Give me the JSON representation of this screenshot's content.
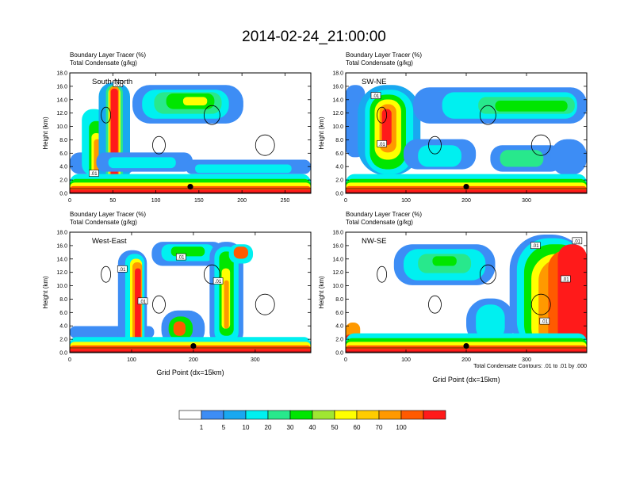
{
  "title": "2014-02-24_21:00:00",
  "colorbar": {
    "labels": [
      "1",
      "5",
      "10",
      "20",
      "30",
      "40",
      "50",
      "60",
      "70",
      "100"
    ],
    "colors": [
      "#ffffff",
      "#3d8df5",
      "#19a8f0",
      "#00f0f0",
      "#28e88c",
      "#00e600",
      "#a0e632",
      "#ffff00",
      "#ffcc00",
      "#ff9900",
      "#ff5a00",
      "#ff1a1a"
    ]
  },
  "footnote": "Total Condensate Contours: .01 to .01 by .000",
  "chart_data": [
    {
      "type": "heatmap",
      "name": "South-North",
      "label1": "Boundary Layer Tracer   (%)",
      "label2": "Total Condensate   (g/kg)",
      "ylabel": "Height (km)",
      "xlabel": "",
      "xlim": [
        0,
        280
      ],
      "ylim": [
        0,
        18
      ],
      "xticks": [
        "0",
        "50",
        "100",
        "150",
        "200",
        "250"
      ],
      "yticks": [
        "0.0",
        "2.0",
        "4.0",
        "6.0",
        "8.0",
        "10.0",
        "12.0",
        "14.0",
        "16.0",
        "18.0"
      ],
      "contour_labels": [
        {
          "text": ".01",
          "x": 56,
          "y": 16.3
        },
        {
          "text": ".01",
          "x": 28,
          "y": 2.9
        }
      ],
      "marker": {
        "x": 140,
        "y": 1.0
      }
    },
    {
      "type": "heatmap",
      "name": "SW-NE",
      "label1": "Boundary Layer Tracer   (%)",
      "label2": "Total Condensate   (g/kg)",
      "ylabel": "Height (km)",
      "xlabel": "",
      "xlim": [
        0,
        400
      ],
      "ylim": [
        0,
        18
      ],
      "xticks": [
        "0",
        "100",
        "200",
        "300"
      ],
      "yticks": [
        "0.0",
        "2.0",
        "4.0",
        "6.0",
        "8.0",
        "10.0",
        "12.0",
        "14.0",
        "16.0",
        "18.0"
      ],
      "contour_labels": [
        {
          "text": ".01",
          "x": 50,
          "y": 14.5
        },
        {
          "text": ".01",
          "x": 60,
          "y": 7.3
        }
      ],
      "marker": {
        "x": 200,
        "y": 1.0
      }
    },
    {
      "type": "heatmap",
      "name": "West-East",
      "label1": "Boundary Layer Tracer   (%)",
      "label2": "Total Condensate   (g/kg)",
      "ylabel": "Height (km)",
      "xlabel": "Grid Point (dx=15km)",
      "xlim": [
        0,
        390
      ],
      "ylim": [
        0,
        18
      ],
      "xticks": [
        "0",
        "100",
        "200",
        "300"
      ],
      "yticks": [
        "0.0",
        "2.0",
        "4.0",
        "6.0",
        "8.0",
        "10.0",
        "12.0",
        "14.0",
        "16.0",
        "18.0"
      ],
      "contour_labels": [
        {
          "text": ".01",
          "x": 85,
          "y": 12.4
        },
        {
          "text": ".01",
          "x": 180,
          "y": 14.2
        },
        {
          "text": ".01",
          "x": 240,
          "y": 10.6
        },
        {
          "text": ".01",
          "x": 118,
          "y": 7.6
        }
      ],
      "marker": {
        "x": 200,
        "y": 1.0
      }
    },
    {
      "type": "heatmap",
      "name": "NW-SE",
      "label1": "Boundary Layer Tracer   (%)",
      "label2": "Total Condensate   (g/kg)",
      "ylabel": "Height (km)",
      "xlabel": "Grid Point (dx=15km)",
      "xlim": [
        0,
        400
      ],
      "ylim": [
        0,
        18
      ],
      "xticks": [
        "0",
        "100",
        "200",
        "300"
      ],
      "yticks": [
        "0.0",
        "2.0",
        "4.0",
        "6.0",
        "8.0",
        "10.0",
        "12.0",
        "14.0",
        "16.0",
        "18.0"
      ],
      "contour_labels": [
        {
          "text": ".01",
          "x": 315,
          "y": 15.9
        },
        {
          "text": ".01",
          "x": 365,
          "y": 10.9
        },
        {
          "text": ".01",
          "x": 330,
          "y": 4.6
        },
        {
          "text": ".01",
          "x": 384,
          "y": 16.6
        }
      ],
      "marker": {
        "x": 200,
        "y": 1.0
      }
    }
  ]
}
